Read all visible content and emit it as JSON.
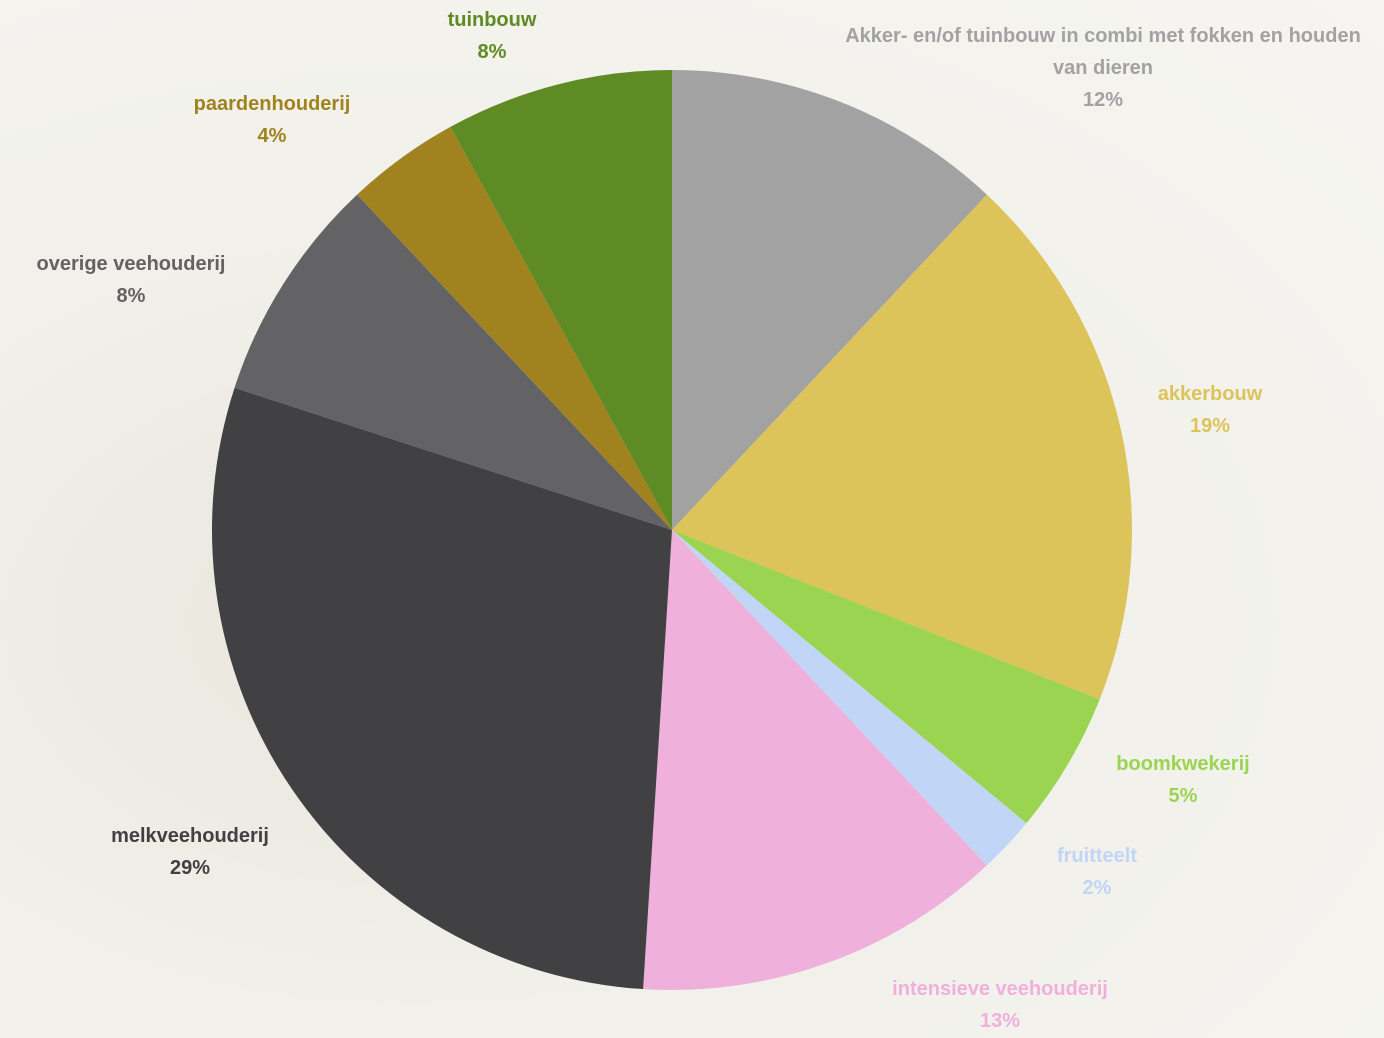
{
  "chart_data": {
    "type": "pie",
    "categories": [
      "Akker- en/of tuinbouw in combi met fokken en houden van dieren",
      "akkerbouw",
      "boomkwekerij",
      "fruitteelt",
      "intensieve veehouderij",
      "melkveehouderij",
      "overige veehouderij",
      "paardenhouderij",
      "tuinbouw"
    ],
    "values": [
      12,
      19,
      5,
      2,
      13,
      29,
      8,
      4,
      8
    ],
    "value_labels": [
      "12%",
      "19%",
      "5%",
      "2%",
      "13%",
      "29%",
      "8%",
      "4%",
      "8%"
    ],
    "colors": [
      "#a3a2a3",
      "#dcc45a",
      "#9bd451",
      "#c1d5f6",
      "#f0b0dc",
      "#414042",
      "#636264",
      "#a0821f",
      "#5f8b24"
    ]
  }
}
